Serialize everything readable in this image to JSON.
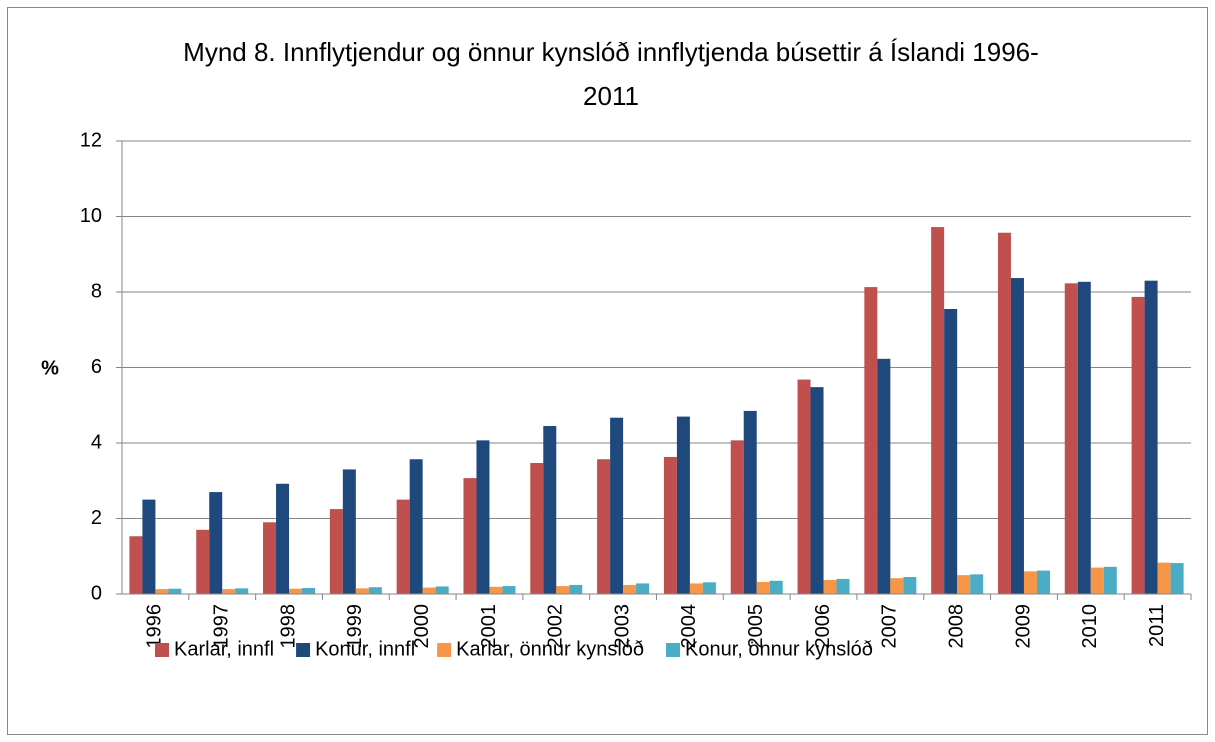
{
  "chart_data": {
    "type": "bar",
    "title": "Mynd 8. Innflytjendur og önnur kynslóð innflytjenda búsettir á Íslandi 1996-2011",
    "y_label": "%",
    "categories": [
      "1996",
      "1997",
      "1998",
      "1999",
      "2000",
      "2001",
      "2002",
      "2003",
      "2004",
      "2005",
      "2006",
      "2007",
      "2008",
      "2009",
      "2010",
      "2011"
    ],
    "series": [
      {
        "name": "Karlar, innfl",
        "color": "#c0504d",
        "values": [
          1.53,
          1.7,
          1.9,
          2.25,
          2.5,
          3.07,
          3.47,
          3.57,
          3.63,
          4.07,
          5.68,
          8.13,
          9.72,
          9.57,
          8.23,
          7.87
        ]
      },
      {
        "name": "Konur, innfl",
        "color": "#1f497d",
        "values": [
          2.5,
          2.7,
          2.92,
          3.3,
          3.57,
          4.07,
          4.45,
          4.67,
          4.7,
          4.85,
          5.48,
          6.23,
          7.55,
          8.37,
          8.27,
          8.3
        ]
      },
      {
        "name": "Karlar, önnur kynslóð",
        "color": "#f79646",
        "values": [
          0.13,
          0.13,
          0.14,
          0.15,
          0.17,
          0.19,
          0.21,
          0.24,
          0.28,
          0.32,
          0.37,
          0.42,
          0.5,
          0.6,
          0.7,
          0.83
        ]
      },
      {
        "name": "Konur, önnur kynslóð",
        "color": "#4bacc6",
        "values": [
          0.14,
          0.15,
          0.16,
          0.18,
          0.2,
          0.21,
          0.24,
          0.28,
          0.31,
          0.35,
          0.4,
          0.45,
          0.52,
          0.62,
          0.72,
          0.82
        ]
      }
    ],
    "ylim": [
      0,
      12
    ],
    "yticks": [
      0,
      2,
      4,
      6,
      8,
      10,
      12
    ],
    "grid": true,
    "legend": "bottom"
  }
}
